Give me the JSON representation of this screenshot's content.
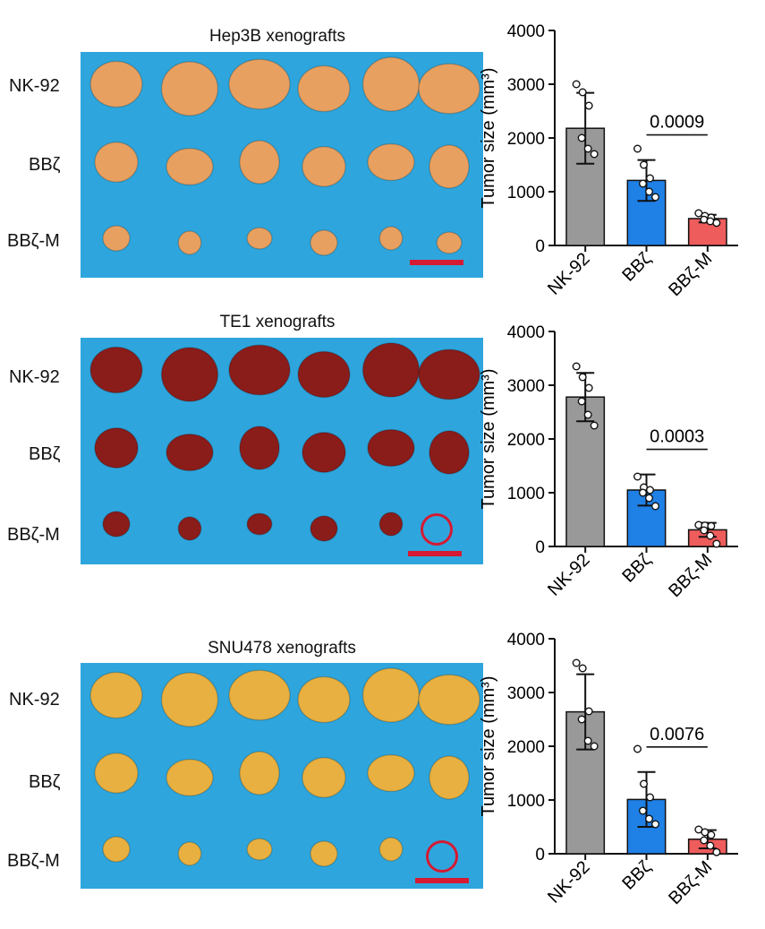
{
  "panels": [
    {
      "title": "Hep3B xenografts",
      "row_labels": [
        "NK-92",
        "BBζ",
        "BBζ-M"
      ],
      "tumor_color": "#e8a060",
      "tumors_per_row": [
        6,
        6,
        6
      ]
    },
    {
      "title": "TE1 xenografts",
      "row_labels": [
        "NK-92",
        "BBζ",
        "BBζ-M"
      ],
      "tumor_color": "#8a1c1a",
      "tumors_per_row": [
        6,
        6,
        5
      ]
    },
    {
      "title": "SNU478 xenografts",
      "row_labels": [
        "NK-92",
        "BBζ",
        "BBζ-M"
      ],
      "tumor_color": "#e8b040",
      "tumors_per_row": [
        6,
        6,
        5
      ]
    }
  ],
  "chart_data": [
    {
      "type": "bar",
      "categories": [
        "NK-92",
        "BBζ",
        "BBζ-M"
      ],
      "values": [
        2180,
        1210,
        500
      ],
      "error": [
        660,
        380,
        70
      ],
      "points": [
        [
          3000,
          2850,
          2600,
          2000,
          1800,
          1700
        ],
        [
          1800,
          1500,
          1250,
          1150,
          1000,
          900
        ],
        [
          600,
          550,
          520,
          480,
          450,
          420
        ]
      ],
      "ylabel": "Tumor size (mm³)",
      "ylim": [
        0,
        4000
      ],
      "yticks": [
        "0",
        "1000",
        "2000",
        "3000",
        "4000"
      ],
      "p_value": "0.0009",
      "colors": [
        "#999999",
        "#1f80e6",
        "#ee5c5c"
      ]
    },
    {
      "type": "bar",
      "categories": [
        "NK-92",
        "BBζ",
        "BBζ-M"
      ],
      "values": [
        2780,
        1050,
        310
      ],
      "error": [
        450,
        290,
        130
      ],
      "points": [
        [
          3350,
          3150,
          2950,
          2700,
          2450,
          2250
        ],
        [
          1300,
          1100,
          1050,
          1000,
          900,
          750
        ],
        [
          400,
          390,
          380,
          300,
          200,
          50
        ]
      ],
      "ylabel": "Tumor size (mm³)",
      "ylim": [
        0,
        4000
      ],
      "yticks": [
        "0",
        "1000",
        "2000",
        "3000",
        "4000"
      ],
      "p_value": "0.0003",
      "colors": [
        "#999999",
        "#1f80e6",
        "#ee5c5c"
      ]
    },
    {
      "type": "bar",
      "categories": [
        "NK-92",
        "BBζ",
        "BBζ-M"
      ],
      "values": [
        2640,
        1010,
        270
      ],
      "error": [
        700,
        510,
        170
      ],
      "points": [
        [
          3550,
          3450,
          2650,
          2500,
          2100,
          2000
        ],
        [
          1950,
          1300,
          1050,
          800,
          650,
          550
        ],
        [
          450,
          400,
          350,
          250,
          150,
          30
        ]
      ],
      "ylabel": "Tumor size (mm³)",
      "ylim": [
        0,
        4000
      ],
      "yticks": [
        "0",
        "1000",
        "2000",
        "3000",
        "4000"
      ],
      "p_value": "0.0076",
      "colors": [
        "#999999",
        "#1f80e6",
        "#ee5c5c"
      ]
    }
  ]
}
